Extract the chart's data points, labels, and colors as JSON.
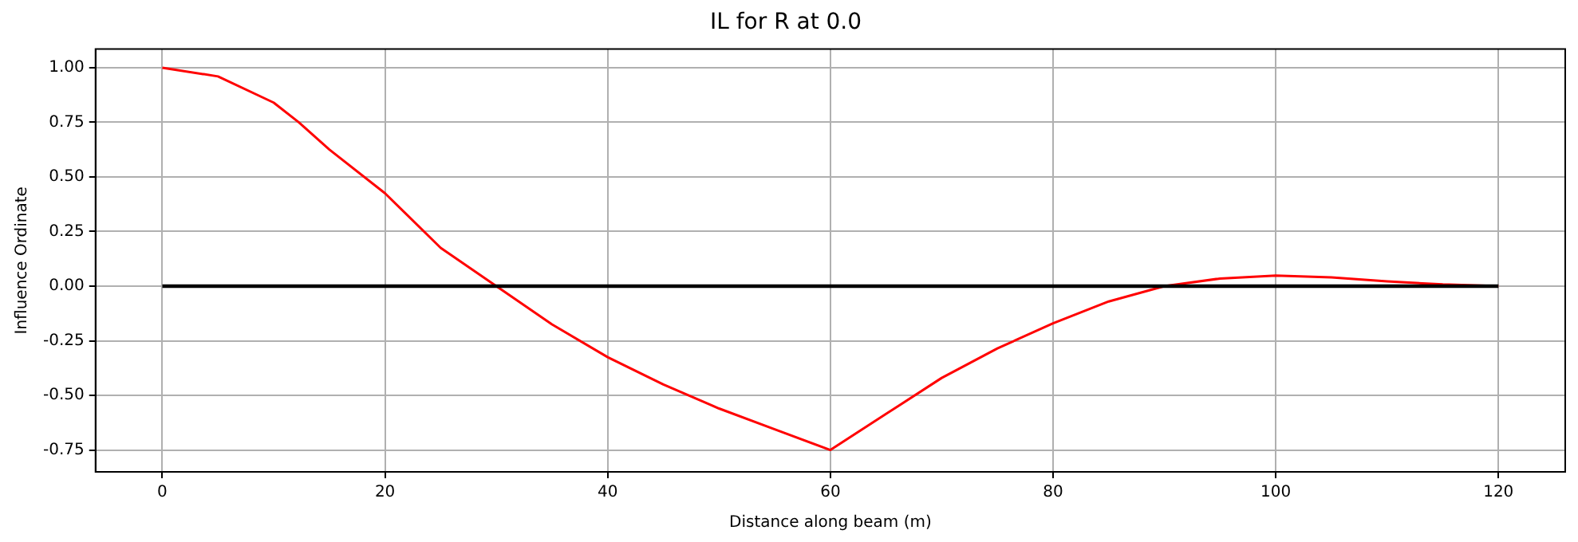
{
  "chart_data": {
    "type": "line",
    "title": "IL for R at 0.0",
    "xlabel": "Distance along beam (m)",
    "ylabel": "Influence Ordinate",
    "xlim": [
      -6,
      126
    ],
    "xticks": [
      0,
      20,
      40,
      60,
      80,
      100,
      120
    ],
    "ylim": [
      -0.85,
      1.085
    ],
    "yticks": [
      {
        "value": -0.75,
        "label": "-0.75"
      },
      {
        "value": -0.5,
        "label": "-0.50"
      },
      {
        "value": -0.25,
        "label": "-0.25"
      },
      {
        "value": 0,
        "label": "0.00"
      },
      {
        "value": 0.25,
        "label": "0.25"
      },
      {
        "value": 0.5,
        "label": "0.50"
      },
      {
        "value": 0.75,
        "label": "0.75"
      },
      {
        "value": 1,
        "label": "1.00"
      }
    ],
    "grid": true,
    "legend": false,
    "series": [
      {
        "color": "#000000",
        "x": [
          0,
          120
        ],
        "values": [
          0,
          0
        ]
      },
      {
        "color": "#ff0000",
        "x": [
          0,
          5,
          10,
          12.25,
          15,
          20,
          25,
          30,
          35,
          40,
          45,
          50,
          55,
          60,
          65,
          70,
          75,
          80,
          85,
          90,
          95,
          100,
          105,
          110,
          115,
          120
        ],
        "values": [
          1,
          0.96,
          0.84,
          0.75,
          0.625,
          0.425,
          0.175,
          0,
          -0.175,
          -0.325,
          -0.45,
          -0.56,
          -0.655,
          -0.75,
          -0.585,
          -0.42,
          -0.285,
          -0.17,
          -0.07,
          0,
          0.035,
          0.048,
          0.04,
          0.022,
          0.008,
          0
        ]
      }
    ]
  }
}
